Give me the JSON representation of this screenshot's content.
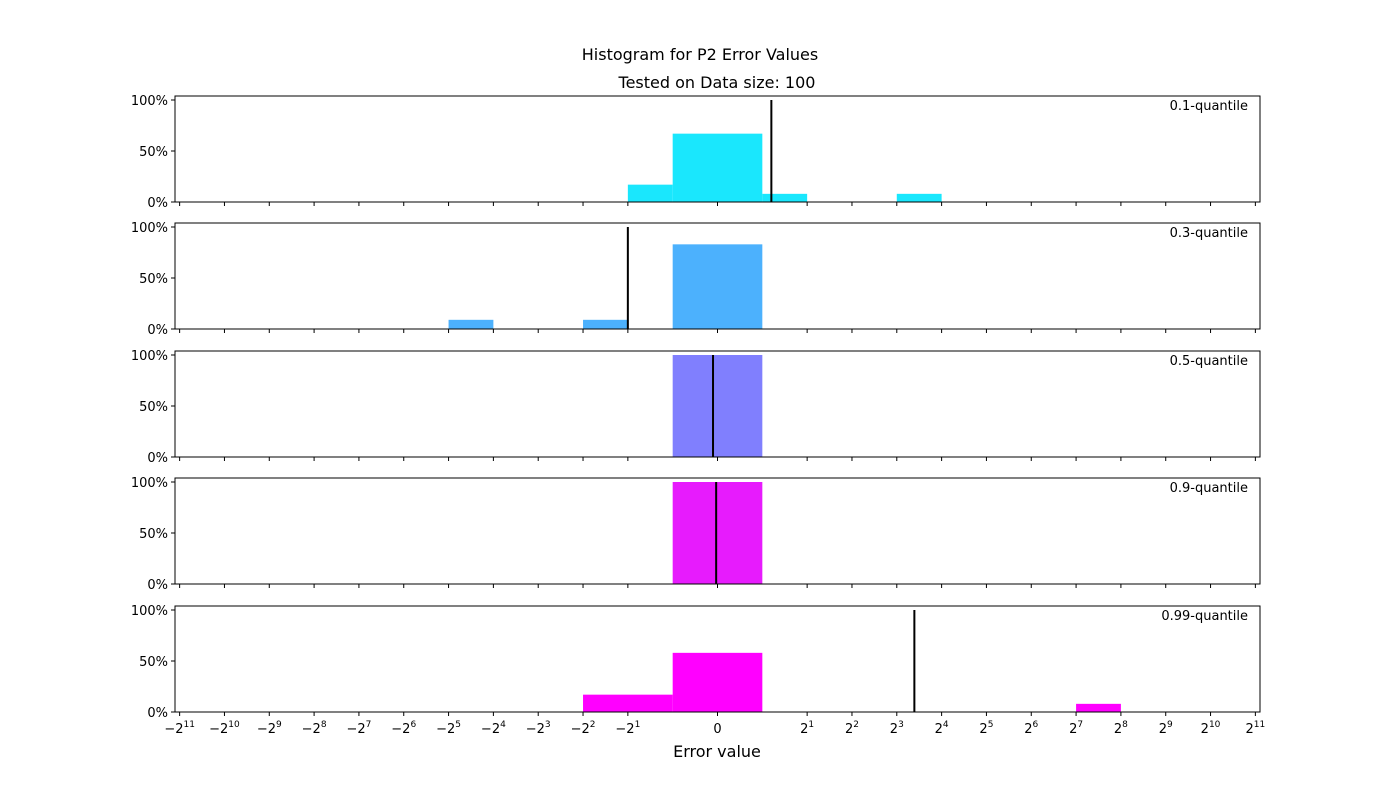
{
  "chart_data": {
    "type": "bar",
    "suptitle": "Histogram for P2 Error Values",
    "title": "Tested on Data size: 100",
    "xlabel": "Error value",
    "ylabel": "",
    "x_scale": "symlog base 2",
    "x_ticks": [
      {
        "value": -2048,
        "label": "−2",
        "exp": "11"
      },
      {
        "value": -1024,
        "label": "−2",
        "exp": "10"
      },
      {
        "value": -512,
        "label": "−2",
        "exp": "9"
      },
      {
        "value": -256,
        "label": "−2",
        "exp": "8"
      },
      {
        "value": -128,
        "label": "−2",
        "exp": "7"
      },
      {
        "value": -64,
        "label": "−2",
        "exp": "6"
      },
      {
        "value": -32,
        "label": "−2",
        "exp": "5"
      },
      {
        "value": -16,
        "label": "−2",
        "exp": "4"
      },
      {
        "value": -8,
        "label": "−2",
        "exp": "3"
      },
      {
        "value": -4,
        "label": "−2",
        "exp": "2"
      },
      {
        "value": -2,
        "label": "−2",
        "exp": "1"
      },
      {
        "value": 0,
        "label": "0",
        "exp": ""
      },
      {
        "value": 2,
        "label": "2",
        "exp": "1"
      },
      {
        "value": 4,
        "label": "2",
        "exp": "2"
      },
      {
        "value": 8,
        "label": "2",
        "exp": "3"
      },
      {
        "value": 16,
        "label": "2",
        "exp": "4"
      },
      {
        "value": 32,
        "label": "2",
        "exp": "5"
      },
      {
        "value": 64,
        "label": "2",
        "exp": "6"
      },
      {
        "value": 128,
        "label": "2",
        "exp": "7"
      },
      {
        "value": 256,
        "label": "2",
        "exp": "8"
      },
      {
        "value": 512,
        "label": "2",
        "exp": "9"
      },
      {
        "value": 1024,
        "label": "2",
        "exp": "10"
      },
      {
        "value": 2048,
        "label": "2",
        "exp": "11"
      }
    ],
    "y_ticks": [
      "0%",
      "50%",
      "100%"
    ],
    "ylim": [
      0,
      1.0
    ],
    "xlim": [
      -2200,
      2200
    ],
    "panels": [
      {
        "label": "0.1-quantile",
        "color": "#1ae7fd",
        "marker": 1.15,
        "bins": [
          {
            "from": -2,
            "to": -1,
            "value": 0.17
          },
          {
            "from": -1,
            "to": 1,
            "value": 0.67
          },
          {
            "from": 1,
            "to": 2,
            "value": 0.08
          },
          {
            "from": 8,
            "to": 16,
            "value": 0.08
          }
        ]
      },
      {
        "label": "0.3-quantile",
        "color": "#4cb1fd",
        "marker": -2,
        "bins": [
          {
            "from": -32,
            "to": -16,
            "value": 0.09
          },
          {
            "from": -4,
            "to": -2,
            "value": 0.09
          },
          {
            "from": -1,
            "to": 1,
            "value": 0.83
          }
        ]
      },
      {
        "label": "0.5-quantile",
        "color": "#807ffe",
        "marker": -0.1,
        "bins": [
          {
            "from": -1,
            "to": 1,
            "value": 1.0
          }
        ]
      },
      {
        "label": "0.9-quantile",
        "color": "#e71bfd",
        "marker": -0.03,
        "bins": [
          {
            "from": -1,
            "to": 1,
            "value": 1.0
          }
        ]
      },
      {
        "label": "0.99-quantile",
        "color": "#ff00ff",
        "marker": 10.5,
        "bins": [
          {
            "from": -4,
            "to": -1,
            "value": 0.17
          },
          {
            "from": -1,
            "to": 1,
            "value": 0.58
          },
          {
            "from": 128,
            "to": 256,
            "value": 0.08
          }
        ]
      }
    ]
  }
}
